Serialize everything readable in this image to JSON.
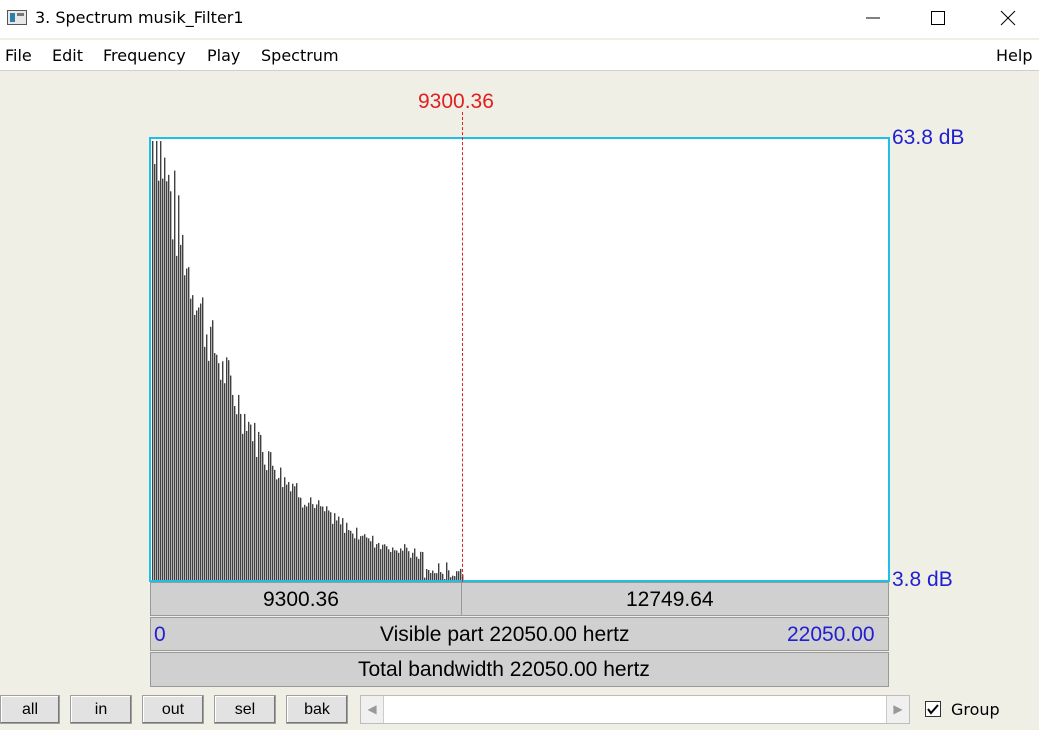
{
  "window": {
    "title": "3. Spectrum musik_Filter1"
  },
  "menu": {
    "file": "File",
    "edit": "Edit",
    "frequency": "Frequency",
    "play": "Play",
    "spectrum": "Spectrum",
    "help": "Help"
  },
  "spectrum": {
    "cursor_value": "9300.36",
    "db_max": "63.8 dB",
    "db_min": "3.8 dB",
    "selection_start": "9300.36",
    "selection_width": "12749.64",
    "visible_start": "0",
    "visible_label": "Visible part 22050.00 hertz",
    "visible_end": "22050.00",
    "total_label": "Total bandwidth 22050.00 hertz"
  },
  "toolbar": {
    "all": "all",
    "in": "in",
    "out": "out",
    "sel": "sel",
    "bak": "bak",
    "group_label": "Group",
    "group_checked": true
  },
  "colors": {
    "cursor": "#e02020",
    "axis_label": "#2020d0",
    "plot_border": "#1ec0e6",
    "spectrum": "#404040"
  },
  "icons": {
    "app": "spectrum-window-icon",
    "minimize": "minimize-icon",
    "maximize": "maximize-icon",
    "close": "close-icon",
    "scroll_left": "scroll-left-arrow-icon",
    "scroll_right": "scroll-right-arrow-icon"
  }
}
